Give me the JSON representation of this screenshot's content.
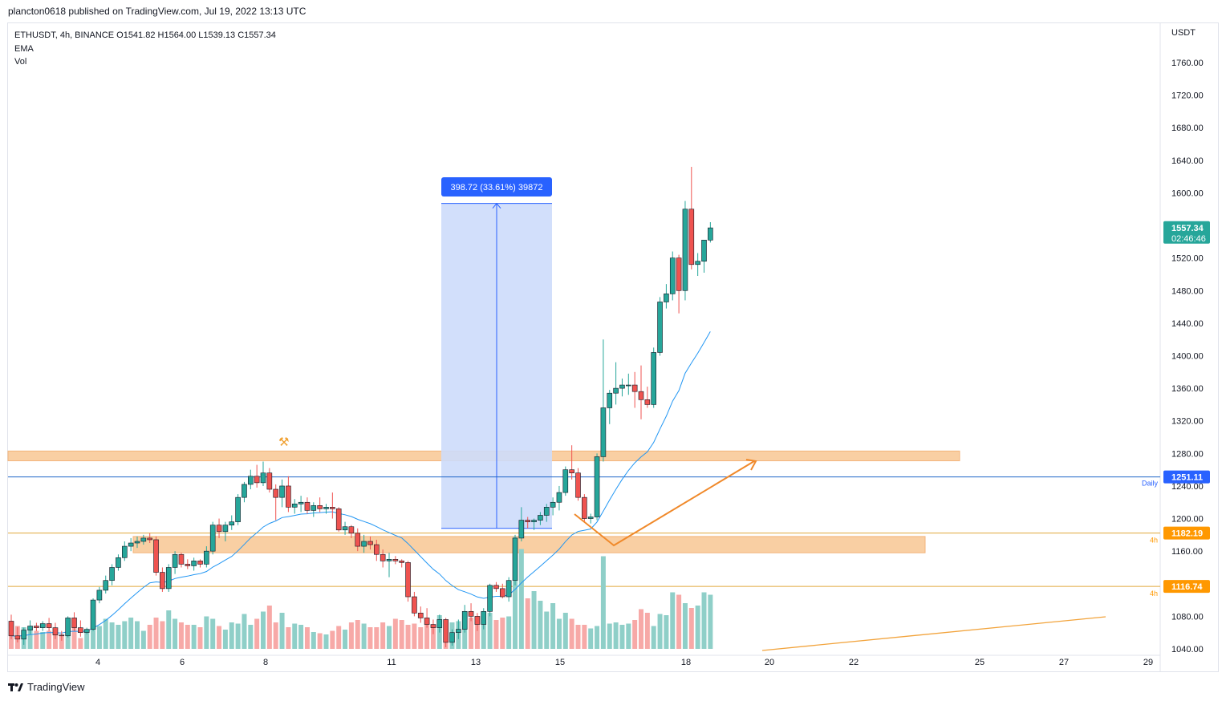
{
  "header": {
    "published_line": "plancton0618 published on TradingView.com, Jul 19, 2022 13:13 UTC"
  },
  "legend": {
    "symbol_line": "ETHUSDT, 4h, BINANCE  O1541.82  H1564.00  L1539.13  C1557.34",
    "indicator_1": "EMA",
    "indicator_2": "Vol"
  },
  "footer": {
    "brand": "TradingView",
    "logo_icon": "tradingview-logo-icon"
  },
  "colors": {
    "up": "#26a69a",
    "down": "#ef5350",
    "up_vol": "#8fcfc8",
    "down_vol": "#f7a9a7",
    "ema": "#2196f3",
    "zone": "#f9cfa3",
    "level_orange": "#f2a33b",
    "daily_line": "#1e64c8",
    "measure_fill": "#cddcfb",
    "measure_badge": "#2962ff",
    "price_badge": "#26a69a",
    "daily_badge": "#2962ff",
    "h4_badge": "#ff9800",
    "arrow": "#f0892a"
  },
  "chart_data": {
    "type": "candlestick",
    "symbol": "ETHUSDT",
    "interval": "4h",
    "exchange": "BINANCE",
    "ohlc_last": {
      "open": 1541.82,
      "high": 1564.0,
      "low": 1539.13,
      "close": 1557.34
    },
    "y_axis": {
      "unit_label": "USDT",
      "ticks": [
        "1760.00",
        "1720.00",
        "1680.00",
        "1640.00",
        "1600.00",
        "1560.00",
        "1520.00",
        "1480.00",
        "1440.00",
        "1400.00",
        "1360.00",
        "1320.00",
        "1280.00",
        "1240.00",
        "1200.00",
        "1160.00",
        "1120.00",
        "1080.00",
        "1040.00"
      ],
      "ylim": [
        1040,
        1760
      ]
    },
    "x_axis": {
      "ticks": [
        "4",
        "6",
        "8",
        "11",
        "13",
        "15",
        "18",
        "20",
        "22",
        "25",
        "27",
        "29"
      ]
    },
    "price_labels": {
      "last_price": "1557.34",
      "countdown": "02:46:46",
      "daily_level": "1251.11",
      "daily_label": "Daily",
      "level_1": "1182.19",
      "level_2": "1116.74",
      "tf_label": "4h"
    },
    "measure": {
      "label": "398.72 (33.61%) 39872",
      "from": 1188,
      "to": 1587
    },
    "zones": [
      {
        "name": "resistance",
        "low": 1271,
        "high": 1279
      },
      {
        "name": "support",
        "low": 1158,
        "high": 1178
      }
    ],
    "candles": [
      [
        1074,
        1082,
        1052,
        1056
      ],
      [
        1056,
        1067,
        1048,
        1052
      ],
      [
        1052,
        1066,
        1045,
        1063
      ],
      [
        1063,
        1075,
        1058,
        1068
      ],
      [
        1068,
        1072,
        1062,
        1066
      ],
      [
        1066,
        1074,
        1062,
        1071
      ],
      [
        1071,
        1078,
        1062,
        1066
      ],
      [
        1066,
        1072,
        1052,
        1057
      ],
      [
        1057,
        1062,
        1050,
        1056
      ],
      [
        1056,
        1080,
        1054,
        1078
      ],
      [
        1078,
        1085,
        1062,
        1066
      ],
      [
        1066,
        1075,
        1055,
        1060
      ],
      [
        1060,
        1066,
        1058,
        1064
      ],
      [
        1064,
        1102,
        1062,
        1100
      ],
      [
        1100,
        1116,
        1096,
        1112
      ],
      [
        1112,
        1130,
        1108,
        1124
      ],
      [
        1124,
        1144,
        1118,
        1140
      ],
      [
        1140,
        1156,
        1136,
        1152
      ],
      [
        1152,
        1172,
        1148,
        1166
      ],
      [
        1166,
        1176,
        1160,
        1170
      ],
      [
        1170,
        1178,
        1164,
        1172
      ],
      [
        1172,
        1180,
        1168,
        1176
      ],
      [
        1176,
        1182,
        1170,
        1174
      ],
      [
        1174,
        1178,
        1130,
        1134
      ],
      [
        1134,
        1140,
        1110,
        1114
      ],
      [
        1114,
        1144,
        1110,
        1140
      ],
      [
        1140,
        1160,
        1132,
        1156
      ],
      [
        1156,
        1158,
        1140,
        1144
      ],
      [
        1144,
        1150,
        1138,
        1142
      ],
      [
        1142,
        1152,
        1136,
        1148
      ],
      [
        1148,
        1150,
        1140,
        1144
      ],
      [
        1144,
        1166,
        1140,
        1160
      ],
      [
        1160,
        1196,
        1156,
        1192
      ],
      [
        1192,
        1200,
        1176,
        1184
      ],
      [
        1184,
        1196,
        1172,
        1192
      ],
      [
        1192,
        1204,
        1186,
        1196
      ],
      [
        1196,
        1230,
        1192,
        1226
      ],
      [
        1226,
        1245,
        1220,
        1242
      ],
      [
        1242,
        1260,
        1236,
        1252
      ],
      [
        1252,
        1266,
        1238,
        1244
      ],
      [
        1244,
        1270,
        1240,
        1256
      ],
      [
        1256,
        1262,
        1232,
        1236
      ],
      [
        1236,
        1242,
        1198,
        1226
      ],
      [
        1226,
        1248,
        1214,
        1240
      ],
      [
        1240,
        1252,
        1208,
        1214
      ],
      [
        1214,
        1224,
        1206,
        1218
      ],
      [
        1218,
        1228,
        1208,
        1220
      ],
      [
        1220,
        1226,
        1206,
        1210
      ],
      [
        1210,
        1220,
        1202,
        1216
      ],
      [
        1216,
        1226,
        1208,
        1212
      ],
      [
        1212,
        1218,
        1206,
        1214
      ],
      [
        1214,
        1232,
        1200,
        1212
      ],
      [
        1212,
        1214,
        1184,
        1186
      ],
      [
        1186,
        1196,
        1180,
        1190
      ],
      [
        1190,
        1192,
        1176,
        1182
      ],
      [
        1182,
        1188,
        1160,
        1166
      ],
      [
        1166,
        1180,
        1158,
        1172
      ],
      [
        1172,
        1178,
        1162,
        1168
      ],
      [
        1168,
        1174,
        1148,
        1156
      ],
      [
        1156,
        1162,
        1140,
        1148
      ],
      [
        1148,
        1158,
        1128,
        1150
      ],
      [
        1150,
        1154,
        1144,
        1148
      ],
      [
        1148,
        1150,
        1140,
        1146
      ],
      [
        1146,
        1148,
        1098,
        1104
      ],
      [
        1104,
        1110,
        1080,
        1084
      ],
      [
        1084,
        1092,
        1072,
        1078
      ],
      [
        1078,
        1090,
        1066,
        1070
      ],
      [
        1070,
        1076,
        1058,
        1066
      ],
      [
        1066,
        1082,
        1060,
        1076
      ],
      [
        1076,
        1078,
        1042,
        1048
      ],
      [
        1048,
        1064,
        1044,
        1060
      ],
      [
        1060,
        1076,
        1052,
        1064
      ],
      [
        1064,
        1094,
        1060,
        1086
      ],
      [
        1086,
        1096,
        1074,
        1080
      ],
      [
        1080,
        1084,
        1062,
        1070
      ],
      [
        1070,
        1090,
        1064,
        1086
      ],
      [
        1086,
        1120,
        1080,
        1118
      ],
      [
        1118,
        1122,
        1110,
        1114
      ],
      [
        1114,
        1120,
        1102,
        1104
      ],
      [
        1104,
        1128,
        1098,
        1124
      ],
      [
        1124,
        1180,
        1118,
        1176
      ],
      [
        1176,
        1214,
        1172,
        1198
      ],
      [
        1198,
        1202,
        1188,
        1196
      ],
      [
        1196,
        1200,
        1186,
        1198
      ],
      [
        1198,
        1208,
        1192,
        1204
      ],
      [
        1204,
        1218,
        1196,
        1214
      ],
      [
        1214,
        1226,
        1204,
        1220
      ],
      [
        1220,
        1240,
        1210,
        1232
      ],
      [
        1232,
        1264,
        1228,
        1260
      ],
      [
        1260,
        1290,
        1248,
        1256
      ],
      [
        1256,
        1262,
        1222,
        1226
      ],
      [
        1226,
        1230,
        1196,
        1200
      ],
      [
        1200,
        1206,
        1194,
        1202
      ],
      [
        1202,
        1280,
        1198,
        1276
      ],
      [
        1276,
        1420,
        1270,
        1336
      ],
      [
        1336,
        1358,
        1316,
        1354
      ],
      [
        1354,
        1392,
        1340,
        1360
      ],
      [
        1360,
        1372,
        1350,
        1364
      ],
      [
        1364,
        1378,
        1352,
        1364
      ],
      [
        1364,
        1380,
        1336,
        1356
      ],
      [
        1356,
        1388,
        1322,
        1346
      ],
      [
        1346,
        1362,
        1336,
        1340
      ],
      [
        1340,
        1410,
        1336,
        1404
      ],
      [
        1404,
        1472,
        1400,
        1466
      ],
      [
        1466,
        1488,
        1458,
        1476
      ],
      [
        1476,
        1528,
        1468,
        1520
      ],
      [
        1520,
        1524,
        1452,
        1480
      ],
      [
        1480,
        1590,
        1468,
        1580
      ],
      [
        1580,
        1632,
        1506,
        1512
      ],
      [
        1512,
        1526,
        1498,
        1516
      ],
      [
        1516,
        1540,
        1502,
        1542
      ],
      [
        1542,
        1564,
        1539,
        1557
      ]
    ]
  }
}
